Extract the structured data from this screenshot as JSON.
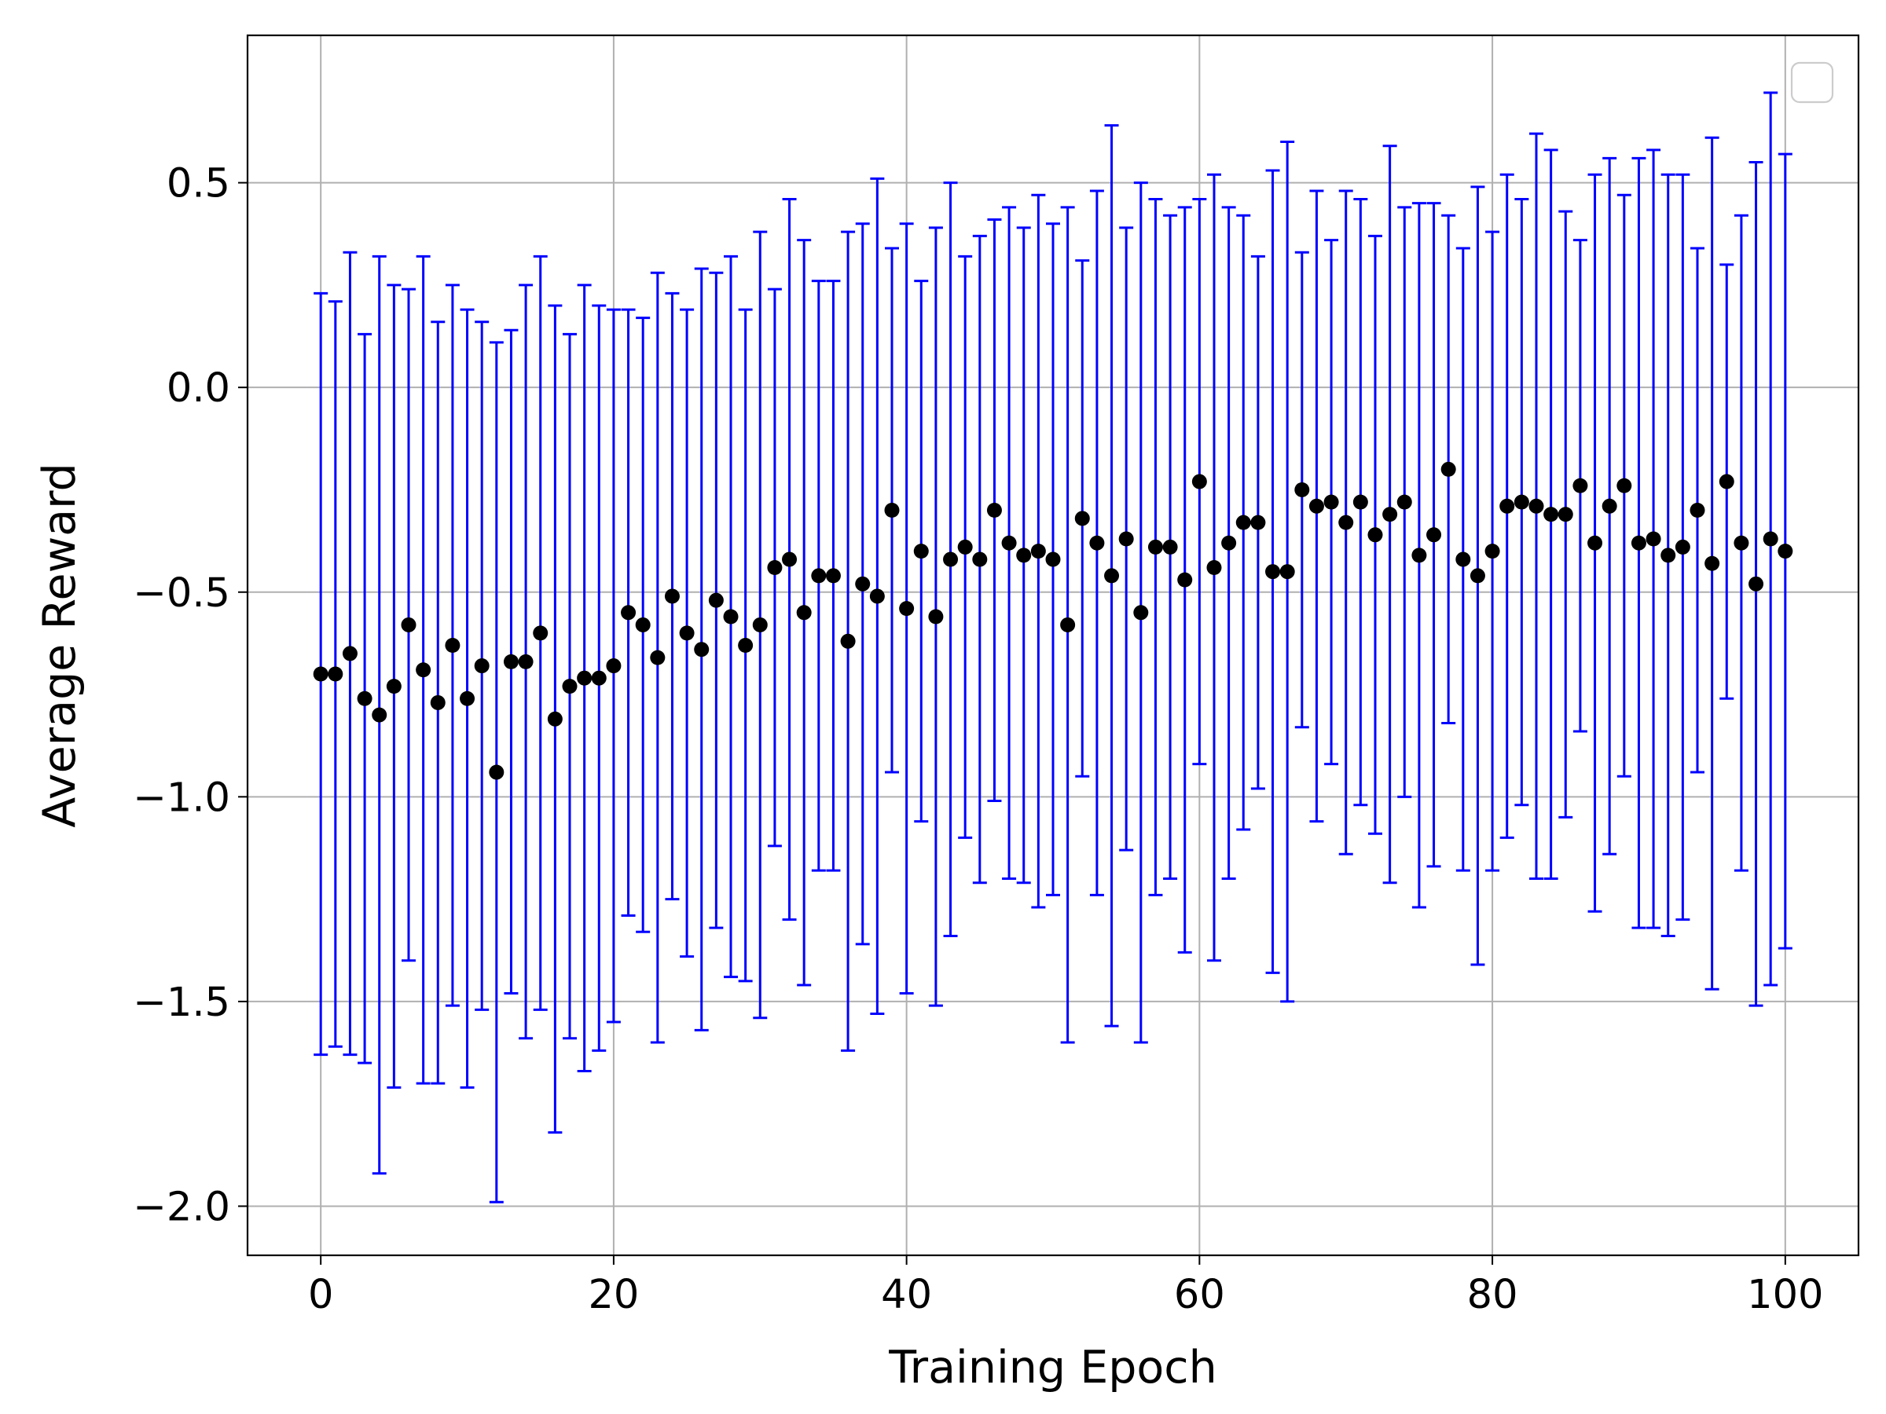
{
  "chart_data": {
    "type": "scatter",
    "title": "",
    "xlabel": "Training Epoch",
    "ylabel": "Average Reward",
    "xlim": [
      -5,
      105
    ],
    "ylim": [
      -2.12,
      0.86
    ],
    "xticks": [
      0,
      20,
      40,
      60,
      80,
      100
    ],
    "xtick_labels": [
      "0",
      "20",
      "40",
      "60",
      "80",
      "100"
    ],
    "yticks": [
      -2.0,
      -1.5,
      -1.0,
      -0.5,
      0.0,
      0.5
    ],
    "ytick_labels": [
      "−2.0",
      "−1.5",
      "−1.0",
      "−0.5",
      "0.0",
      "0.5"
    ],
    "grid": true,
    "legend": {
      "placement": "top-right",
      "entries": []
    },
    "colors": {
      "errorbar": "#0000ff",
      "marker": "#000000",
      "grid": "#b0b0b0",
      "axes": "#000000"
    },
    "series": [
      {
        "x": [
          0,
          1,
          2,
          3,
          4,
          5,
          6,
          7,
          8,
          9,
          10,
          11,
          12,
          13,
          14,
          15,
          16,
          17,
          18,
          19,
          20,
          21,
          22,
          23,
          24,
          25,
          26,
          27,
          28,
          29,
          30,
          31,
          32,
          33,
          34,
          35,
          36,
          37,
          38,
          39,
          40,
          41,
          42,
          43,
          44,
          45,
          46,
          47,
          48,
          49,
          50,
          51,
          52,
          53,
          54,
          55,
          56,
          57,
          58,
          59,
          60,
          61,
          62,
          63,
          64,
          65,
          66,
          67,
          68,
          69,
          70,
          71,
          72,
          73,
          74,
          75,
          76,
          77,
          78,
          79,
          80,
          81,
          82,
          83,
          84,
          85,
          86,
          87,
          88,
          89,
          90,
          91,
          92,
          93,
          94,
          95,
          96,
          97,
          98,
          99,
          100
        ],
        "y": [
          -0.7,
          -0.7,
          -0.65,
          -0.76,
          -0.8,
          -0.73,
          -0.58,
          -0.69,
          -0.77,
          -0.63,
          -0.76,
          -0.68,
          -0.94,
          -0.67,
          -0.67,
          -0.6,
          -0.81,
          -0.73,
          -0.71,
          -0.71,
          -0.68,
          -0.55,
          -0.58,
          -0.66,
          -0.51,
          -0.6,
          -0.64,
          -0.52,
          -0.56,
          -0.63,
          -0.58,
          -0.44,
          -0.42,
          -0.55,
          -0.46,
          -0.46,
          -0.62,
          -0.48,
          -0.51,
          -0.3,
          -0.54,
          -0.4,
          -0.56,
          -0.42,
          -0.39,
          -0.42,
          -0.3,
          -0.38,
          -0.41,
          -0.4,
          -0.42,
          -0.58,
          -0.32,
          -0.38,
          -0.46,
          -0.37,
          -0.55,
          -0.39,
          -0.39,
          -0.47,
          -0.23,
          -0.44,
          -0.38,
          -0.33,
          -0.33,
          -0.45,
          -0.45,
          -0.25,
          -0.29,
          -0.28,
          -0.33,
          -0.28,
          -0.36,
          -0.31,
          -0.28,
          -0.41,
          -0.36,
          -0.2,
          -0.42,
          -0.46,
          -0.4,
          -0.29,
          -0.28,
          -0.29,
          -0.31,
          -0.31,
          -0.24,
          -0.38,
          -0.29,
          -0.24,
          -0.38,
          -0.37,
          -0.41,
          -0.39,
          -0.3,
          -0.43,
          -0.23,
          -0.38,
          -0.48,
          -0.37,
          -0.4
        ],
        "yerr": [
          0.93,
          0.91,
          0.98,
          0.89,
          1.12,
          0.98,
          0.82,
          1.01,
          0.93,
          0.88,
          0.95,
          0.84,
          1.05,
          0.81,
          0.92,
          0.92,
          1.01,
          0.86,
          0.96,
          0.91,
          0.87,
          0.74,
          0.75,
          0.94,
          0.74,
          0.79,
          0.93,
          0.8,
          0.88,
          0.82,
          0.96,
          0.68,
          0.88,
          0.91,
          0.72,
          0.72,
          1.0,
          0.88,
          1.02,
          0.64,
          0.94,
          0.66,
          0.95,
          0.92,
          0.71,
          0.79,
          0.71,
          0.82,
          0.8,
          0.87,
          0.82,
          1.02,
          0.63,
          0.86,
          1.1,
          0.76,
          1.05,
          0.85,
          0.81,
          0.91,
          0.69,
          0.96,
          0.82,
          0.75,
          0.65,
          0.98,
          1.05,
          0.58,
          0.77,
          0.64,
          0.81,
          0.74,
          0.73,
          0.9,
          0.72,
          0.86,
          0.81,
          0.62,
          0.76,
          0.95,
          0.78,
          0.81,
          0.74,
          0.91,
          0.89,
          0.74,
          0.6,
          0.9,
          0.85,
          0.71,
          0.94,
          0.95,
          0.93,
          0.91,
          0.64,
          1.04,
          0.53,
          0.8,
          1.03,
          1.09,
          0.97
        ]
      }
    ]
  }
}
